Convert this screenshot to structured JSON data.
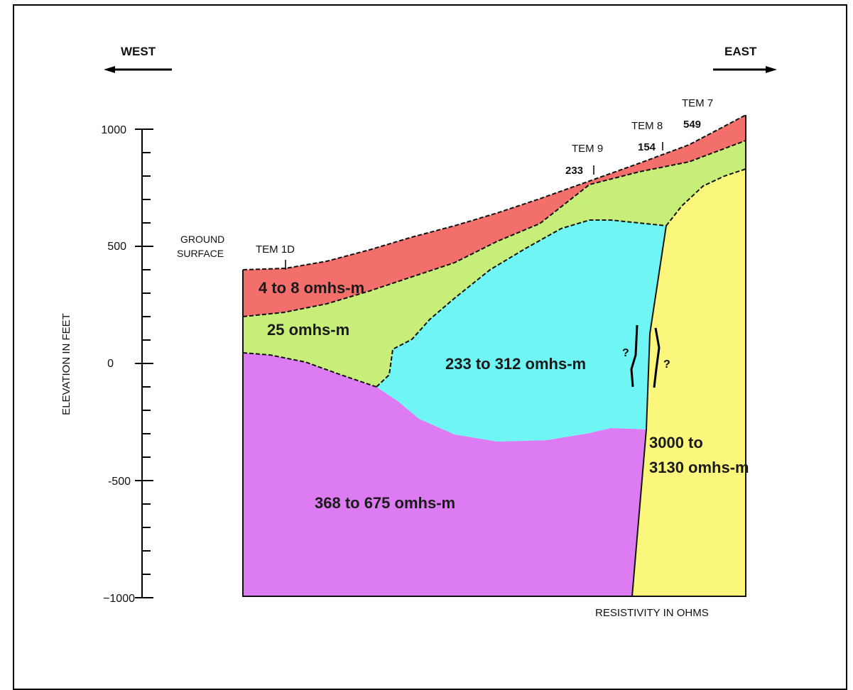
{
  "directions": {
    "west": "WEST",
    "east": "EAST"
  },
  "axis": {
    "ylabel": "ELEVATION IN FEET",
    "xlabel": "RESISTIVITY IN OHMS",
    "ticks": [
      "1000",
      "500",
      "0",
      "-500",
      "−1000"
    ]
  },
  "ground_surface": {
    "line1": "GROUND",
    "line2": "SURFACE"
  },
  "stations": [
    {
      "name": "TEM 1D",
      "value": ""
    },
    {
      "name": "TEM 9",
      "value": "233"
    },
    {
      "name": "TEM 8",
      "value": "154"
    },
    {
      "name": "TEM 7",
      "value": "549"
    }
  ],
  "layers": [
    {
      "label": "4 to 8 omhs-m",
      "color": "#f36f6b"
    },
    {
      "label": "25 omhs-m",
      "color": "#c6ee79"
    },
    {
      "label": "233 to 312 omhs-m",
      "color": "#6ff6f4"
    },
    {
      "label": "368 to 675 omhs-m",
      "color": "#dd7cf2"
    },
    {
      "label_line1": "3000 to",
      "label_line2": "3130 omhs-m",
      "color": "#fbf77c"
    }
  ],
  "fault_marks": {
    "left": "?",
    "right": "?"
  }
}
